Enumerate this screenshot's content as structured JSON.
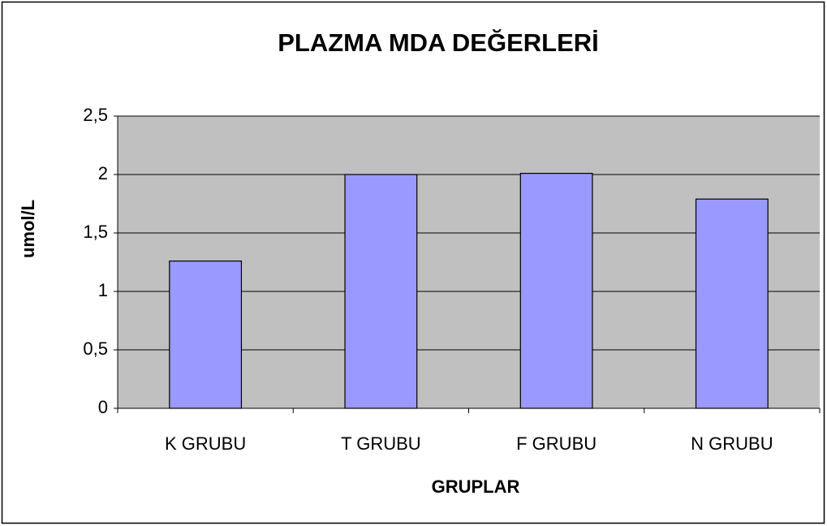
{
  "chart_data": {
    "type": "bar",
    "title": "PLAZMA MDA DEĞERLERİ",
    "x_label": "GRUPLAR",
    "y_label": "umol/L",
    "categories": [
      "K GRUBU",
      "T GRUBU",
      "F GRUBU",
      "N GRUBU"
    ],
    "values": [
      1.26,
      2.0,
      2.01,
      1.79
    ],
    "color": "#9999ff",
    "ylim": [
      0,
      2.5
    ],
    "yticks": [
      0,
      {
        "value": 0.5,
        "label": "0,5"
      },
      1,
      {
        "value": 1.5,
        "label": "1,5"
      },
      2,
      {
        "value": 2.5,
        "label": "2,5"
      }
    ],
    "grid": true
  }
}
